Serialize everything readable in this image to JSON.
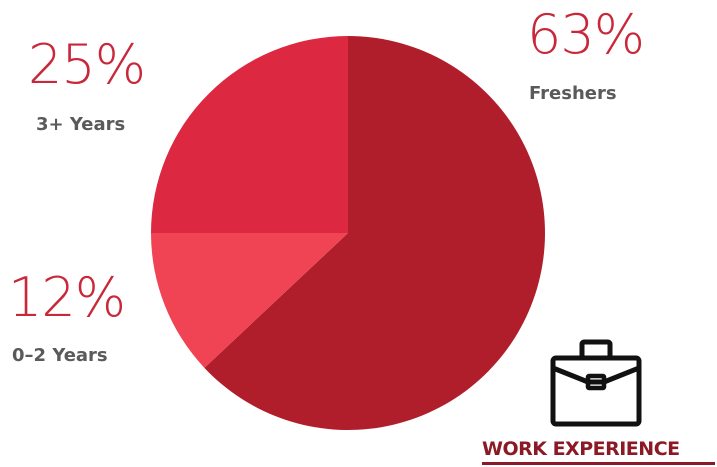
{
  "colors": {
    "freshers": "#b01e2b",
    "zero_two": "#f04454",
    "three_plus": "#dc2840",
    "pct_text": "#c8283a",
    "label_text": "#5a5a5a",
    "heading_text": "#8c1a26",
    "icon": "#111111"
  },
  "icon": "briefcase-icon",
  "heading": "WORK EXPERIENCE",
  "chart_data": {
    "type": "pie",
    "slices": [
      {
        "label": "Freshers",
        "percent_label": "63%",
        "value": 63
      },
      {
        "label": "0–2 Years",
        "percent_label": "12%",
        "value": 12
      },
      {
        "label": "3+ Years",
        "percent_label": "25%",
        "value": 25
      }
    ]
  }
}
